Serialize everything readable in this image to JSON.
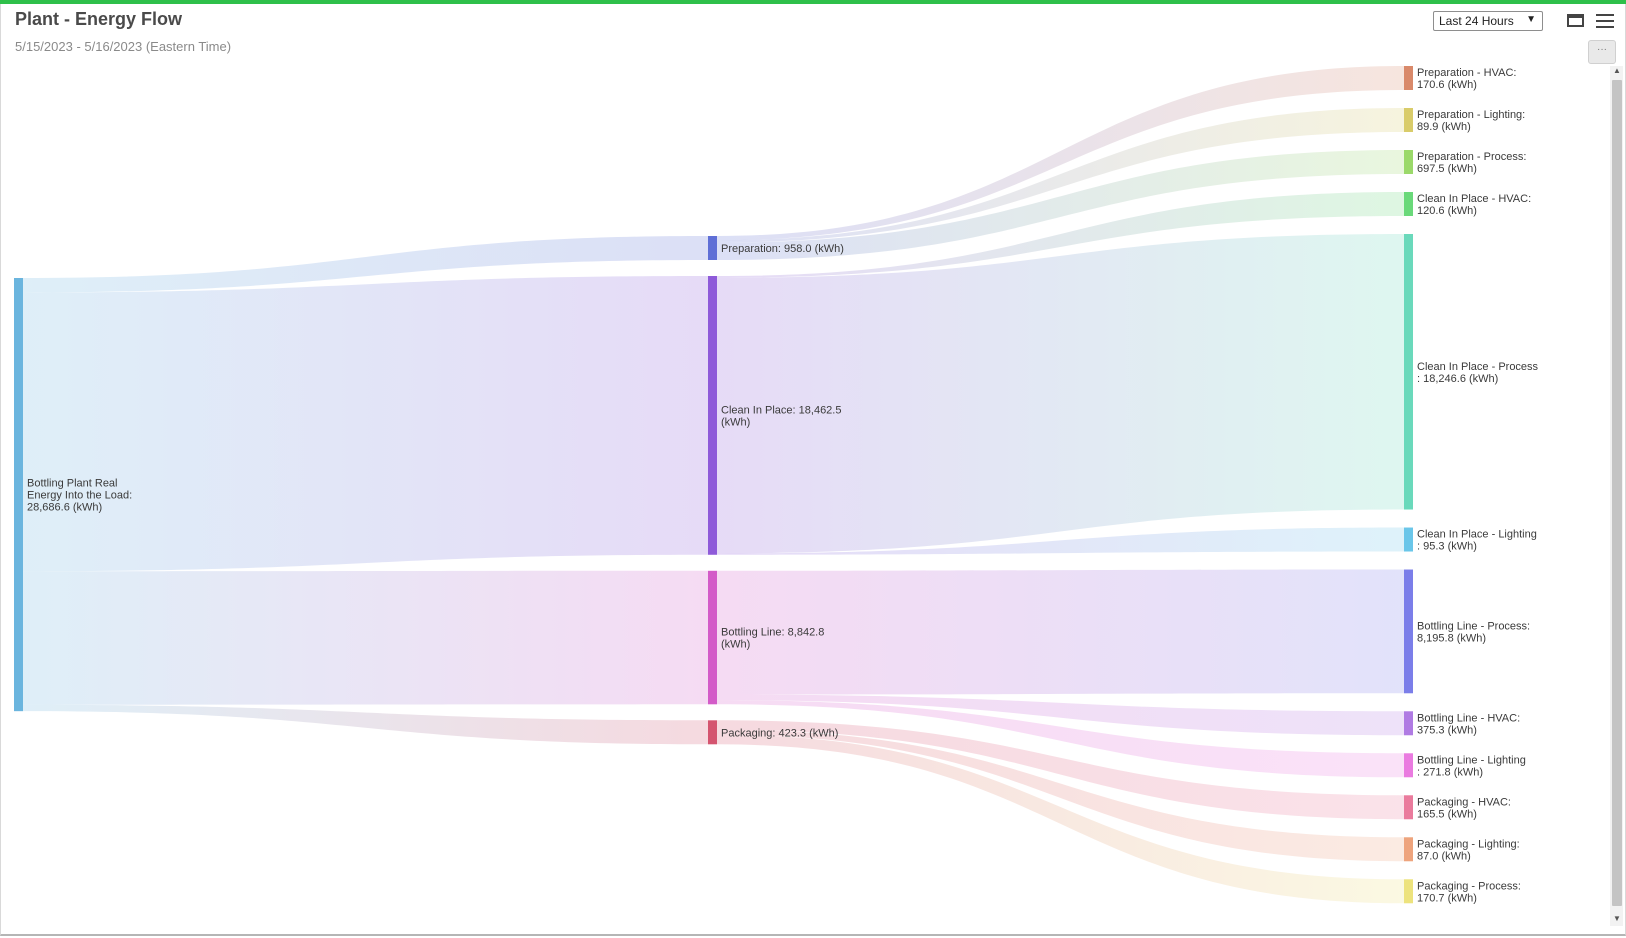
{
  "header": {
    "title": "Plant - Energy Flow",
    "date_range": "5/15/2023 - 5/16/2023 (Eastern Time)",
    "range_selector": "Last 24 Hours"
  },
  "icons": {
    "window": "window-icon",
    "menu": "hamburger-menu-icon",
    "more": "more-options-icon",
    "caret": "chevron-down-icon"
  },
  "chart_data": {
    "type": "sankey",
    "unit": "kWh",
    "nodes": [
      {
        "id": "total",
        "column": 0,
        "label_lines": [
          "Bottling Plant Real",
          "Energy Into the Load:",
          "28,686.6 (kWh)"
        ],
        "value": 28686.6,
        "color": "#6bb5de"
      },
      {
        "id": "prep",
        "column": 1,
        "label_lines": [
          "Preparation: 958.0 (kWh)"
        ],
        "value": 958.0,
        "color": "#5f6fd6"
      },
      {
        "id": "cip",
        "column": 1,
        "label_lines": [
          "Clean In Place: 18,462.5",
          "(kWh)"
        ],
        "value": 18462.5,
        "color": "#8e5ad9"
      },
      {
        "id": "bl",
        "column": 1,
        "label_lines": [
          "Bottling Line: 8,842.8",
          "(kWh)"
        ],
        "value": 8842.8,
        "color": "#d35bc8"
      },
      {
        "id": "pkg",
        "column": 1,
        "label_lines": [
          "Packaging: 423.3 (kWh)"
        ],
        "value": 423.3,
        "color": "#d4546f"
      },
      {
        "id": "prep_hvac",
        "column": 2,
        "label_lines": [
          "Preparation - HVAC:",
          "170.6 (kWh)"
        ],
        "value": 170.6,
        "color": "#d9896a"
      },
      {
        "id": "prep_light",
        "column": 2,
        "label_lines": [
          "Preparation - Lighting:",
          "89.9 (kWh)"
        ],
        "value": 89.9,
        "color": "#d9cc6a"
      },
      {
        "id": "prep_proc",
        "column": 2,
        "label_lines": [
          "Preparation - Process:",
          "697.5 (kWh)"
        ],
        "value": 697.5,
        "color": "#9bd96a"
      },
      {
        "id": "cip_hvac",
        "column": 2,
        "label_lines": [
          "Clean In Place - HVAC:",
          "120.6 (kWh)"
        ],
        "value": 120.6,
        "color": "#6ad97a"
      },
      {
        "id": "cip_proc",
        "column": 2,
        "label_lines": [
          "Clean In Place - Process",
          ": 18,246.6 (kWh)"
        ],
        "value": 18246.6,
        "color": "#6ad9bb"
      },
      {
        "id": "cip_light",
        "column": 2,
        "label_lines": [
          "Clean In Place - Lighting",
          ": 95.3 (kWh)"
        ],
        "value": 95.3,
        "color": "#6ac6e9"
      },
      {
        "id": "bl_proc",
        "column": 2,
        "label_lines": [
          "Bottling Line - Process:",
          "8,195.8 (kWh)"
        ],
        "value": 8195.8,
        "color": "#7b7ee9"
      },
      {
        "id": "bl_hvac",
        "column": 2,
        "label_lines": [
          "Bottling Line - HVAC:",
          "375.3 (kWh)"
        ],
        "value": 375.3,
        "color": "#b07be3"
      },
      {
        "id": "bl_light",
        "column": 2,
        "label_lines": [
          "Bottling Line - Lighting",
          ": 271.8 (kWh)"
        ],
        "value": 271.8,
        "color": "#ea7be0"
      },
      {
        "id": "pkg_hvac",
        "column": 2,
        "label_lines": [
          "Packaging - HVAC:",
          "165.5 (kWh)"
        ],
        "value": 165.5,
        "color": "#ea7b9d"
      },
      {
        "id": "pkg_light",
        "column": 2,
        "label_lines": [
          "Packaging - Lighting:",
          "87.0 (kWh)"
        ],
        "value": 87.0,
        "color": "#eea47d"
      },
      {
        "id": "pkg_proc",
        "column": 2,
        "label_lines": [
          "Packaging - Process:",
          "170.7 (kWh)"
        ],
        "value": 170.7,
        "color": "#ede37d"
      }
    ],
    "links": [
      {
        "source": "total",
        "target": "prep",
        "value": 958.0
      },
      {
        "source": "total",
        "target": "cip",
        "value": 18462.5
      },
      {
        "source": "total",
        "target": "bl",
        "value": 8842.8
      },
      {
        "source": "total",
        "target": "pkg",
        "value": 423.3
      },
      {
        "source": "prep",
        "target": "prep_hvac",
        "value": 170.6
      },
      {
        "source": "prep",
        "target": "prep_light",
        "value": 89.9
      },
      {
        "source": "prep",
        "target": "prep_proc",
        "value": 697.5
      },
      {
        "source": "cip",
        "target": "cip_hvac",
        "value": 120.6
      },
      {
        "source": "cip",
        "target": "cip_proc",
        "value": 18246.6
      },
      {
        "source": "cip",
        "target": "cip_light",
        "value": 95.3
      },
      {
        "source": "bl",
        "target": "bl_proc",
        "value": 8195.8
      },
      {
        "source": "bl",
        "target": "bl_hvac",
        "value": 375.3
      },
      {
        "source": "bl",
        "target": "bl_light",
        "value": 271.8
      },
      {
        "source": "pkg",
        "target": "pkg_hvac",
        "value": 165.5
      },
      {
        "source": "pkg",
        "target": "pkg_light",
        "value": 87.0
      },
      {
        "source": "pkg",
        "target": "pkg_proc",
        "value": 170.7
      }
    ]
  }
}
